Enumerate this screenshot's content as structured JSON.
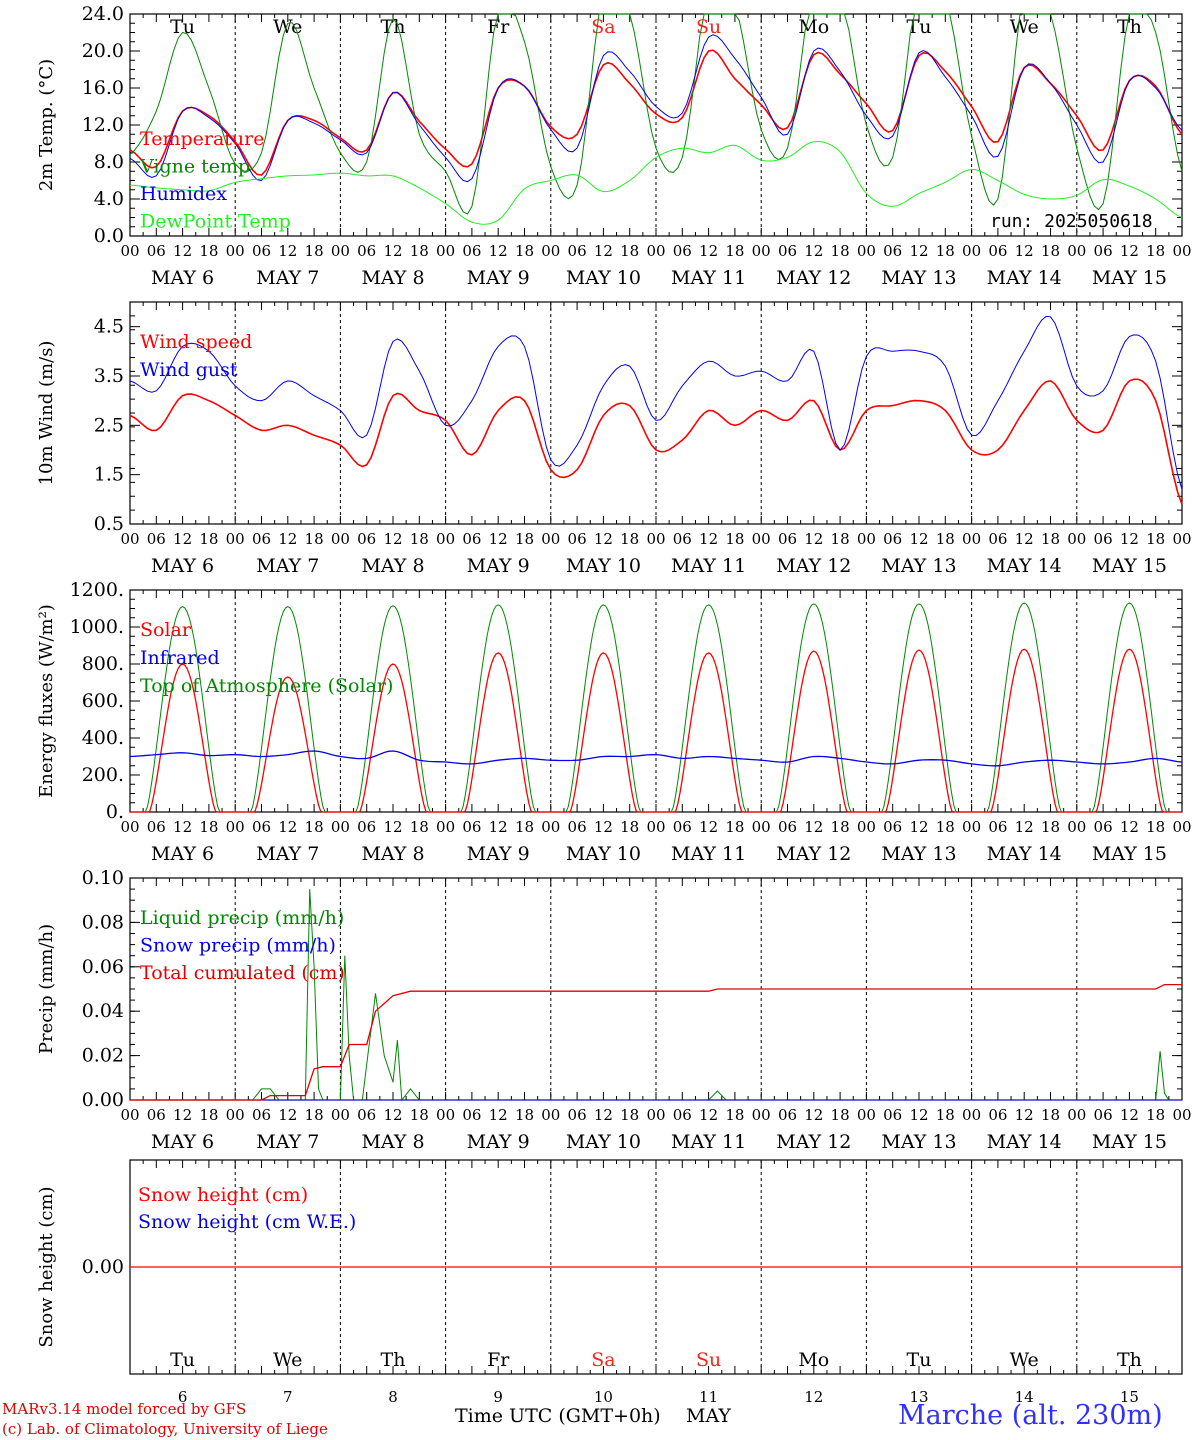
{
  "meta": {
    "days": [
      "6",
      "7",
      "8",
      "9",
      "10",
      "11",
      "12",
      "13",
      "14",
      "15"
    ],
    "month": "MAY",
    "weekdays": [
      "Tu",
      "We",
      "Th",
      "Fr",
      "Sa",
      "Su",
      "Mo",
      "Tu",
      "We",
      "Th"
    ],
    "hour_labels": [
      "00",
      "06",
      "12",
      "18"
    ],
    "last_hour_label": "00",
    "weekend_color": "#ff2020",
    "weekday_color": "#000000",
    "run_label": "run: 2025050618",
    "xaxis_title": "Time UTC (GMT+0h)",
    "xaxis_month": "MAY",
    "credit_line1": "MARv3.14 model forced by GFS",
    "credit_line2": "(c) Lab. of Climatology, University of Liege",
    "station": "Marche (alt. 230m)",
    "station_color": "#3030ff",
    "credit_color": "#e00000"
  },
  "chart_data": [
    {
      "type": "line",
      "ylabel": "2m Temp. (°C)",
      "ylim": [
        0,
        24
      ],
      "yticks": [
        "0.0",
        "4.0",
        "8.0",
        "12.0",
        "16.0",
        "20.0",
        "24.0"
      ],
      "x_hours": [
        0,
        6,
        12,
        18,
        24,
        30,
        36,
        42,
        48,
        54,
        60,
        66,
        72,
        78,
        84,
        90,
        96,
        102,
        108,
        114,
        120,
        126,
        132,
        138,
        144,
        150,
        156,
        162,
        168,
        174,
        180,
        186,
        192,
        198,
        204,
        210,
        216,
        222,
        228,
        234,
        240
      ],
      "series": [
        {
          "name": "Temperature",
          "color": "#ff0000",
          "width": 1.6,
          "values": [
            9.3,
            7.5,
            13.5,
            13.0,
            10.2,
            6.6,
            12.5,
            12.5,
            10.6,
            9.3,
            15.5,
            12.4,
            9.4,
            7.8,
            16.0,
            16.2,
            11.8,
            11.0,
            18.5,
            16.5,
            13.2,
            12.8,
            20.0,
            17.0,
            14.2,
            11.7,
            19.6,
            17.5,
            14.3,
            11.4,
            19.5,
            17.8,
            14.0,
            10.2,
            18.2,
            16.5,
            13.0,
            9.3,
            16.8,
            16.2,
            11.0
          ]
        },
        {
          "name": "Vigne temp",
          "color": "#008800",
          "width": 1,
          "values": [
            8.8,
            13.5,
            22.0,
            16.0,
            7.8,
            9.0,
            23.0,
            16.0,
            9.0,
            8.0,
            23.5,
            11.0,
            7.0,
            3.2,
            24.5,
            21.0,
            7.5,
            5.5,
            26.5,
            24.0,
            9.5,
            8.5,
            27.0,
            25.0,
            11.5,
            9.5,
            27.5,
            26.5,
            12.0,
            8.5,
            27.5,
            26.0,
            10.8,
            4.0,
            26.5,
            24.0,
            9.5,
            3.5,
            24.0,
            22.0,
            7.0
          ]
        },
        {
          "name": "Humidex",
          "color": "#0000ee",
          "width": 1,
          "values": [
            8.4,
            6.5,
            13.5,
            12.8,
            10.0,
            6.0,
            12.5,
            12.2,
            10.4,
            9.0,
            15.5,
            12.0,
            8.5,
            6.2,
            16.0,
            16.2,
            11.5,
            9.5,
            19.5,
            17.8,
            14.0,
            13.3,
            21.5,
            19.2,
            15.0,
            11.0,
            20.0,
            17.8,
            13.0,
            10.8,
            19.8,
            17.2,
            13.0,
            8.6,
            18.2,
            16.5,
            12.0,
            8.0,
            16.8,
            16.0,
            11.4
          ]
        },
        {
          "name": "DewPoint Temp",
          "color": "#22ee22",
          "width": 1,
          "values": [
            5.5,
            5.2,
            5.0,
            4.9,
            5.8,
            6.2,
            6.5,
            6.6,
            6.8,
            6.5,
            6.5,
            5.2,
            3.5,
            1.5,
            1.7,
            5.1,
            6.0,
            6.6,
            4.8,
            6.0,
            8.5,
            9.5,
            9.0,
            9.8,
            8.2,
            8.5,
            10.2,
            9.1,
            4.6,
            3.2,
            4.6,
            5.8,
            7.2,
            6.0,
            4.5,
            4.0,
            4.4,
            6.1,
            5.4,
            4.0,
            2.0
          ]
        }
      ],
      "legend_placement": "top-left"
    },
    {
      "type": "line",
      "ylabel": "10m Wind (m/s)",
      "ylim": [
        0.5,
        5.0
      ],
      "yticks": [
        "0.5",
        "1.5",
        "2.5",
        "3.5",
        "4.5"
      ],
      "x_hours": [
        0,
        6,
        12,
        18,
        24,
        30,
        36,
        42,
        48,
        54,
        60,
        66,
        72,
        78,
        84,
        90,
        96,
        102,
        108,
        114,
        120,
        126,
        132,
        138,
        144,
        150,
        156,
        162,
        168,
        174,
        180,
        186,
        192,
        198,
        204,
        210,
        216,
        222,
        228,
        234,
        240
      ],
      "series": [
        {
          "name": "Wind speed",
          "color": "#ff0000",
          "width": 1.6,
          "values": [
            2.7,
            2.4,
            3.1,
            3.0,
            2.7,
            2.4,
            2.5,
            2.3,
            2.1,
            1.7,
            3.1,
            2.8,
            2.6,
            1.9,
            2.8,
            3.0,
            1.6,
            1.6,
            2.7,
            2.9,
            2.0,
            2.2,
            2.8,
            2.5,
            2.8,
            2.6,
            3.0,
            2.0,
            2.8,
            2.9,
            3.0,
            2.8,
            2.0,
            2.0,
            2.8,
            3.4,
            2.6,
            2.4,
            3.4,
            3.0,
            0.9
          ]
        },
        {
          "name": "Wind gust",
          "color": "#0000ee",
          "width": 1,
          "values": [
            3.4,
            3.2,
            4.1,
            4.0,
            3.3,
            3.0,
            3.4,
            3.1,
            2.8,
            2.3,
            4.2,
            3.6,
            2.5,
            3.0,
            4.1,
            4.1,
            1.8,
            2.1,
            3.3,
            3.7,
            2.6,
            3.3,
            3.8,
            3.5,
            3.6,
            3.4,
            4.0,
            2.0,
            3.9,
            4.0,
            4.0,
            3.7,
            2.3,
            3.0,
            4.0,
            4.7,
            3.3,
            3.2,
            4.3,
            3.8,
            1.2
          ]
        }
      ],
      "legend_placement": "top-left"
    },
    {
      "type": "line",
      "ylabel": "Energy fluxes (W/m²)",
      "ylim": [
        0,
        1200
      ],
      "yticks": [
        "0.",
        "200.",
        "400.",
        "600.",
        "800.",
        "1000.",
        "1200."
      ],
      "daily_peaks": {
        "Top of Atmosphere (Solar)": [
          1110,
          1110,
          1115,
          1120,
          1120,
          1120,
          1125,
          1125,
          1130,
          1130
        ],
        "Solar": [
          800,
          730,
          800,
          860,
          860,
          860,
          870,
          875,
          880,
          880
        ]
      },
      "series": [
        {
          "name": "Solar",
          "color": "#ff0000",
          "width": 1.3
        },
        {
          "name": "Infrared",
          "color": "#0000ee",
          "width": 1.3,
          "values": [
            300,
            310,
            320,
            305,
            310,
            300,
            310,
            330,
            300,
            290,
            330,
            280,
            270,
            260,
            280,
            290,
            280,
            280,
            300,
            300,
            310,
            290,
            300,
            290,
            280,
            270,
            300,
            290,
            270,
            260,
            280,
            280,
            260,
            250,
            270,
            280,
            270,
            260,
            270,
            290,
            270
          ]
        },
        {
          "name": "Top of Atmosphere (Solar)",
          "color": "#008800",
          "width": 1
        }
      ],
      "legend_placement": "top-left"
    },
    {
      "type": "line",
      "ylabel": "Precip (mm/h)",
      "ylim": [
        0,
        0.1
      ],
      "yticks": [
        "0.00",
        "0.02",
        "0.04",
        "0.06",
        "0.08",
        "0.10"
      ],
      "series": [
        {
          "name": "Liquid precip (mm/h)",
          "color": "#008800",
          "width": 1,
          "points": [
            [
              0,
              0
            ],
            [
              28,
              0
            ],
            [
              30,
              0.005
            ],
            [
              32,
              0.005
            ],
            [
              34,
              0
            ],
            [
              40,
              0
            ],
            [
              41,
              0.095
            ],
            [
              42,
              0.06
            ],
            [
              43,
              0.005
            ],
            [
              44,
              0
            ],
            [
              48,
              0
            ],
            [
              49,
              0.065
            ],
            [
              50,
              0.02
            ],
            [
              51,
              0
            ],
            [
              53,
              0
            ],
            [
              56,
              0.048
            ],
            [
              58,
              0.02
            ],
            [
              60,
              0.008
            ],
            [
              61,
              0.027
            ],
            [
              62,
              0
            ],
            [
              64,
              0.005
            ],
            [
              66,
              0
            ],
            [
              132,
              0
            ],
            [
              134,
              0.004
            ],
            [
              136,
              0
            ],
            [
              234,
              0
            ],
            [
              235,
              0.022
            ],
            [
              236,
              0.003
            ],
            [
              237,
              0
            ],
            [
              240,
              0
            ]
          ]
        },
        {
          "name": "Snow precip (mm/h)",
          "color": "#0000ee",
          "width": 1,
          "points": [
            [
              0,
              0
            ],
            [
              240,
              0
            ]
          ]
        },
        {
          "name": "Total cumulated (cm)",
          "color": "#e00000",
          "width": 1.3,
          "points": [
            [
              0,
              0
            ],
            [
              30,
              0
            ],
            [
              32,
              0.002
            ],
            [
              40,
              0.002
            ],
            [
              42,
              0.014
            ],
            [
              44,
              0.015
            ],
            [
              48,
              0.015
            ],
            [
              50,
              0.025
            ],
            [
              54,
              0.025
            ],
            [
              56,
              0.04
            ],
            [
              60,
              0.047
            ],
            [
              64,
              0.049
            ],
            [
              132,
              0.049
            ],
            [
              134,
              0.05
            ],
            [
              234,
              0.05
            ],
            [
              236,
              0.052
            ],
            [
              240,
              0.052
            ]
          ]
        }
      ],
      "legend_placement": "top-left"
    },
    {
      "type": "line",
      "ylabel": "Snow height (cm)",
      "ylim": [
        -1,
        1
      ],
      "yticks": [
        "0.00"
      ],
      "series": [
        {
          "name": "Snow height (cm)",
          "color": "#ff0000",
          "width": 1.3,
          "points": [
            [
              0,
              0
            ],
            [
              240,
              0
            ]
          ]
        },
        {
          "name": "Snow height (cm W.E.)",
          "color": "#0000ee",
          "width": 1,
          "points": [
            [
              0,
              0
            ],
            [
              240,
              0
            ]
          ]
        }
      ],
      "legend_placement": "top-left"
    }
  ]
}
